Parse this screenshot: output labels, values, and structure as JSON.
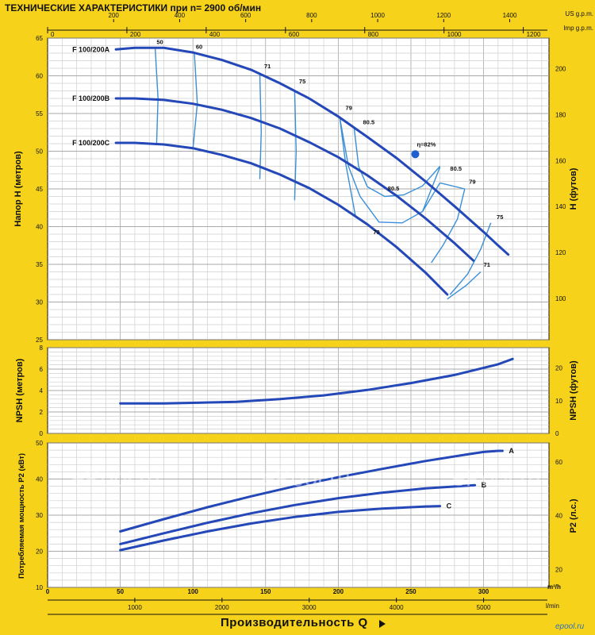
{
  "title": "ТЕХНИЧЕСКИЕ ХАРАКТЕРИСТИКИ при n= 2900 об/мин",
  "top_axes": [
    {
      "unit": "US g.p.m.",
      "ticks": [
        200,
        400,
        600,
        800,
        1000,
        1200,
        1400
      ]
    },
    {
      "unit": "Imp g.p.m.",
      "ticks": [
        0,
        200,
        400,
        600,
        800,
        1000,
        1200
      ]
    }
  ],
  "bottom_axes": [
    {
      "unit": "m³/h",
      "ticks": [
        0,
        50,
        100,
        150,
        200,
        250,
        300
      ]
    },
    {
      "unit": "l/min",
      "ticks": [
        1000,
        2000,
        3000,
        4000,
        5000
      ]
    }
  ],
  "xlabel": "Производительность Q",
  "watermark": "ePool.ru",
  "site_mark": "epool.ru",
  "chart_data": [
    {
      "type": "line",
      "id": "head",
      "ylabel": "Напор H (метров)",
      "ylabel_right": "H (футов)",
      "ylim": [
        25,
        65
      ],
      "yticks": [
        25,
        30,
        35,
        40,
        45,
        50,
        55,
        60,
        65
      ],
      "yticks_right": [
        100,
        120,
        140,
        160,
        180,
        200
      ],
      "xlim": [
        0,
        345
      ],
      "series": [
        {
          "name": "F 100/200A",
          "x": [
            47,
            60,
            80,
            100,
            120,
            140,
            160,
            180,
            200,
            220,
            240,
            260,
            280,
            300,
            310,
            317
          ],
          "y": [
            63.5,
            63.7,
            63.7,
            63.1,
            62.1,
            60.8,
            59.0,
            57.0,
            54.6,
            51.9,
            49.1,
            46.0,
            42.7,
            39.3,
            37.5,
            36.3
          ]
        },
        {
          "name": "F 100/200B",
          "x": [
            47,
            60,
            80,
            100,
            120,
            140,
            160,
            180,
            200,
            220,
            240,
            260,
            280,
            293
          ],
          "y": [
            57.0,
            57.0,
            56.8,
            56.3,
            55.5,
            54.4,
            53.0,
            51.2,
            49.2,
            46.8,
            44.1,
            41.1,
            37.8,
            35.5
          ]
        },
        {
          "name": "F 100/200C",
          "x": [
            47,
            60,
            80,
            100,
            120,
            140,
            160,
            180,
            200,
            220,
            240,
            260,
            275
          ],
          "y": [
            51.1,
            51.1,
            50.9,
            50.4,
            49.5,
            48.4,
            46.9,
            45.1,
            42.9,
            40.3,
            37.3,
            33.9,
            31.0
          ]
        }
      ],
      "iso_efficiency": [
        {
          "label": "50",
          "x": [
            74,
            76,
            75
          ],
          "y": [
            63.7,
            57,
            51
          ]
        },
        {
          "label": "60",
          "x": [
            101,
            103,
            100
          ],
          "y": [
            63.1,
            56.3,
            50.3
          ]
        },
        {
          "label": "71",
          "x": [
            146,
            147,
            146
          ],
          "y": [
            60.3,
            52.6,
            46.3
          ]
        },
        {
          "label": "75",
          "x": [
            170,
            171,
            170
          ],
          "y": [
            58.0,
            50.0,
            43.5
          ]
        },
        {
          "label": "79",
          "x": [
            201,
            205,
            212
          ],
          "y": [
            54.5,
            48.5,
            41.2
          ]
        },
        {
          "label": "79",
          "x": [
            201,
            207,
            215,
            228,
            244,
            258,
            270
          ],
          "y": [
            54.5,
            48,
            44,
            40.6,
            40.5,
            42,
            45.8
          ]
        },
        {
          "label": "80.5",
          "x": [
            211,
            214,
            220,
            232,
            245,
            258,
            270
          ],
          "y": [
            53.0,
            48,
            45.3,
            44.0,
            44.2,
            45.4,
            48.0
          ]
        },
        {
          "label": "79",
          "x": [
            287,
            282,
            272,
            264
          ],
          "y": [
            45.0,
            41.0,
            37.5,
            35.2
          ]
        },
        {
          "label": "75",
          "x": [
            305,
            298,
            289,
            277
          ],
          "y": [
            40.5,
            37.0,
            33.7,
            31.0
          ]
        },
        {
          "label": "71",
          "x": [
            298,
            288,
            275
          ],
          "y": [
            34.0,
            32.2,
            30.4
          ]
        }
      ],
      "iso_connectors": [
        {
          "x": [
            270,
            287
          ],
          "y": [
            45.8,
            45.0
          ]
        },
        {
          "x": [
            258,
            270
          ],
          "y": [
            42.0,
            47.9
          ]
        }
      ],
      "efficiency_labels": [
        {
          "text": "50",
          "x": 75,
          "y": 64.2
        },
        {
          "text": "60",
          "x": 102,
          "y": 63.6
        },
        {
          "text": "71",
          "x": 149,
          "y": 61.0
        },
        {
          "text": "75",
          "x": 173,
          "y": 59.0
        },
        {
          "text": "79",
          "x": 205,
          "y": 55.5
        },
        {
          "text": "80.5",
          "x": 217,
          "y": 53.6
        },
        {
          "text": "80.5",
          "x": 277,
          "y": 47.4
        },
        {
          "text": "79",
          "x": 290,
          "y": 45.7
        },
        {
          "text": "75",
          "x": 309,
          "y": 41.0
        },
        {
          "text": "71",
          "x": 300,
          "y": 34.7
        },
        {
          "text": "80.5",
          "x": 234,
          "y": 44.8
        },
        {
          "text": "79",
          "x": 224,
          "y": 39.0
        }
      ],
      "best_efficiency": {
        "label": "η=82%",
        "x": 253,
        "y": 49.6
      }
    },
    {
      "type": "line",
      "id": "npsh",
      "ylabel": "NPSH (метров)",
      "ylabel_right": "NPSH (футов)",
      "ylim": [
        0,
        8
      ],
      "yticks": [
        0,
        2,
        4,
        6,
        8
      ],
      "yticks_right": [
        0,
        10,
        20
      ],
      "xlim": [
        0,
        345
      ],
      "series": [
        {
          "name": "",
          "x": [
            50,
            80,
            100,
            130,
            160,
            190,
            220,
            250,
            280,
            310,
            320
          ],
          "y": [
            2.8,
            2.8,
            2.85,
            2.95,
            3.2,
            3.55,
            4.05,
            4.7,
            5.45,
            6.45,
            6.95
          ]
        }
      ]
    },
    {
      "type": "line",
      "id": "power",
      "ylabel": "Потребляемая мощность P2 (кВт)",
      "ylabel_right": "P2 (л.с.)",
      "ylim": [
        10,
        50
      ],
      "yticks": [
        10,
        20,
        30,
        40,
        50
      ],
      "yticks_right": [
        20,
        40,
        60
      ],
      "xlim": [
        0,
        345
      ],
      "series": [
        {
          "name": "A",
          "x": [
            50,
            80,
            110,
            140,
            170,
            200,
            230,
            260,
            290,
            300,
            310,
            313
          ],
          "y": [
            25.5,
            28.9,
            32.2,
            35.2,
            38.0,
            40.5,
            42.8,
            45.0,
            46.9,
            47.5,
            47.8,
            47.8
          ]
        },
        {
          "name": "B",
          "x": [
            50,
            80,
            110,
            140,
            170,
            200,
            230,
            260,
            290,
            294
          ],
          "y": [
            22.0,
            25.0,
            27.9,
            30.5,
            32.8,
            34.7,
            36.2,
            37.4,
            38.2,
            38.3
          ]
        },
        {
          "name": "C",
          "x": [
            50,
            80,
            110,
            140,
            170,
            200,
            230,
            260,
            270
          ],
          "y": [
            20.3,
            23.0,
            25.5,
            27.7,
            29.5,
            30.9,
            31.8,
            32.4,
            32.5
          ]
        }
      ]
    }
  ]
}
